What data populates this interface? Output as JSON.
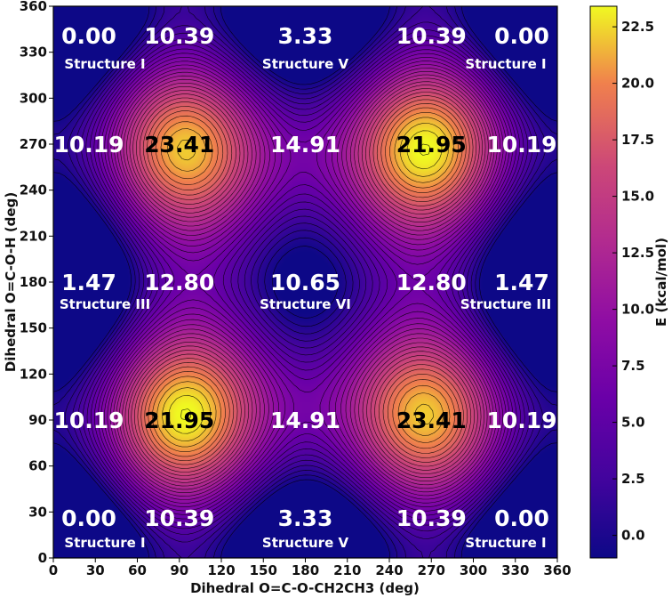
{
  "chart_data": {
    "type": "heatmap",
    "subtype": "contour",
    "xlabel": "Dihedral O=C-O-CH2CH3 (deg)",
    "ylabel": "Dihedral O=C-O-H (deg)",
    "xlim": [
      0,
      360
    ],
    "ylim": [
      0,
      360
    ],
    "xticks": [
      0,
      30,
      60,
      90,
      120,
      150,
      180,
      210,
      240,
      270,
      300,
      330,
      360
    ],
    "yticks": [
      0,
      30,
      60,
      90,
      120,
      150,
      180,
      210,
      240,
      270,
      300,
      330,
      360
    ],
    "colorbar": {
      "label": "E (kcal/mol)",
      "range": [
        -1.0,
        23.41
      ],
      "ticks": [
        0.0,
        2.5,
        5.0,
        7.5,
        10.0,
        12.5,
        15.0,
        17.5,
        20.0,
        22.5
      ],
      "tick_labels": [
        "0.0",
        "2.5",
        "5.0",
        "7.5",
        "10.0",
        "12.5",
        "15.0",
        "17.5",
        "20.0",
        "22.5"
      ],
      "colormap": "plasma"
    },
    "energy_annotations": [
      {
        "x": 0,
        "y": 360,
        "text": "0.00",
        "dark": false
      },
      {
        "x": 90,
        "y": 360,
        "text": "10.39",
        "dark": false
      },
      {
        "x": 180,
        "y": 360,
        "text": "3.33",
        "dark": false
      },
      {
        "x": 270,
        "y": 360,
        "text": "10.39",
        "dark": false
      },
      {
        "x": 360,
        "y": 360,
        "text": "0.00",
        "dark": false
      },
      {
        "x": 0,
        "y": 270,
        "text": "10.19",
        "dark": false
      },
      {
        "x": 90,
        "y": 270,
        "text": "23.41",
        "dark": true
      },
      {
        "x": 180,
        "y": 270,
        "text": "14.91",
        "dark": false
      },
      {
        "x": 270,
        "y": 270,
        "text": "21.95",
        "dark": true
      },
      {
        "x": 360,
        "y": 270,
        "text": "10.19",
        "dark": false
      },
      {
        "x": 0,
        "y": 180,
        "text": "1.47",
        "dark": false
      },
      {
        "x": 90,
        "y": 180,
        "text": "12.80",
        "dark": false
      },
      {
        "x": 180,
        "y": 180,
        "text": "10.65",
        "dark": false
      },
      {
        "x": 270,
        "y": 180,
        "text": "12.80",
        "dark": false
      },
      {
        "x": 360,
        "y": 180,
        "text": "1.47",
        "dark": false
      },
      {
        "x": 0,
        "y": 90,
        "text": "10.19",
        "dark": false
      },
      {
        "x": 90,
        "y": 90,
        "text": "21.95",
        "dark": true
      },
      {
        "x": 180,
        "y": 90,
        "text": "14.91",
        "dark": false
      },
      {
        "x": 270,
        "y": 90,
        "text": "23.41",
        "dark": true
      },
      {
        "x": 360,
        "y": 90,
        "text": "10.19",
        "dark": false
      },
      {
        "x": 0,
        "y": 0,
        "text": "0.00",
        "dark": false
      },
      {
        "x": 90,
        "y": 0,
        "text": "10.39",
        "dark": false
      },
      {
        "x": 180,
        "y": 0,
        "text": "3.33",
        "dark": false
      },
      {
        "x": 270,
        "y": 0,
        "text": "10.39",
        "dark": false
      },
      {
        "x": 360,
        "y": 0,
        "text": "0.00",
        "dark": false
      }
    ],
    "structure_labels": [
      {
        "x": 0,
        "y": 360,
        "text": "Structure I"
      },
      {
        "x": 180,
        "y": 360,
        "text": "Structure V"
      },
      {
        "x": 360,
        "y": 360,
        "text": "Structure I"
      },
      {
        "x": 0,
        "y": 180,
        "text": "Structure III"
      },
      {
        "x": 180,
        "y": 180,
        "text": "Structure VI"
      },
      {
        "x": 360,
        "y": 180,
        "text": "Structure III"
      },
      {
        "x": 0,
        "y": 0,
        "text": "Structure I"
      },
      {
        "x": 180,
        "y": 0,
        "text": "Structure V"
      },
      {
        "x": 360,
        "y": 0,
        "text": "Structure I"
      }
    ]
  }
}
